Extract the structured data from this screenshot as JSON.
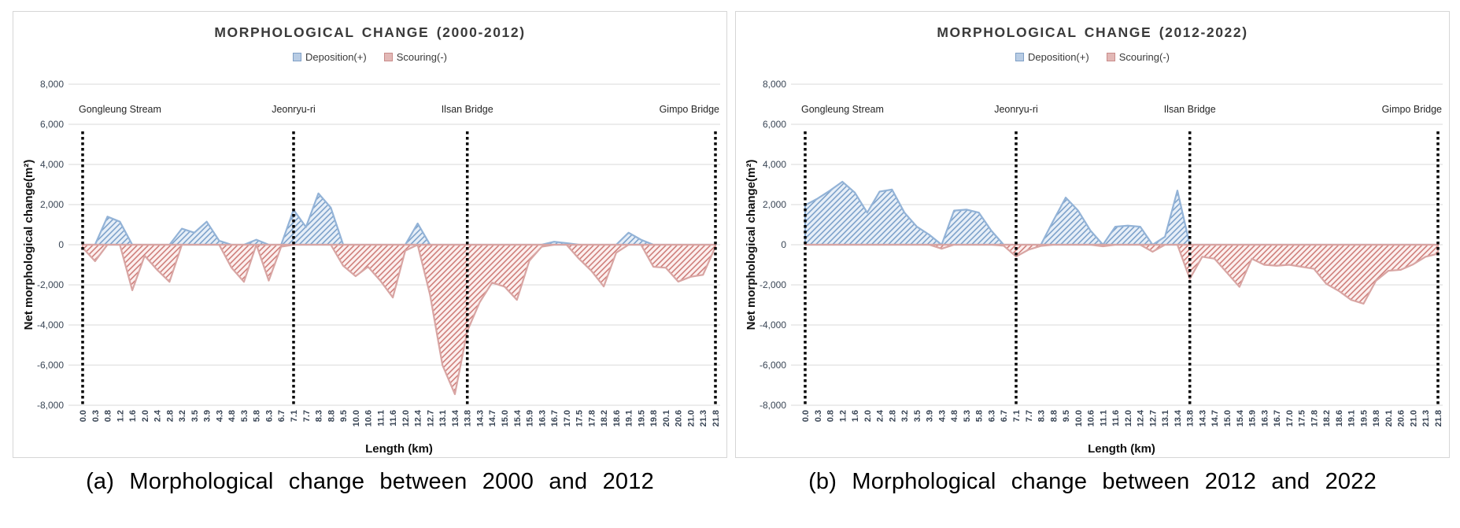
{
  "colors": {
    "deposition_fill": "#e7eff8",
    "deposition_hatch": "#6f97c4",
    "deposition_stroke": "#93b3d7",
    "deposition_swatch": "#b8cce4",
    "deposition_swatch_border": "#7f9fc6",
    "scouring_fill": "#fcf0ef",
    "scouring_hatch": "#c96f6b",
    "scouring_stroke": "#d8a5a3",
    "scouring_swatch": "#e2b8b6",
    "scouring_swatch_border": "#c98c8a",
    "grid": "#d9d9d9",
    "marker_line": "#000000",
    "axis_text": "#394555",
    "title_text": "#3a3a3a",
    "location_text": "#262626"
  },
  "chart_data": [
    {
      "type": "area",
      "title": "MORPHOLOGICAL CHANGE (2000-2012)",
      "caption": "(a) Morphological change between 2000 and 2012",
      "legend": [
        "Deposition(+)",
        "Scouring(-)"
      ],
      "xlabel": "Length (km)",
      "ylabel": "Net morphological change(m²)",
      "ylim": [
        -8000,
        8000
      ],
      "ytick_step": 2000,
      "grid": "on",
      "legend_position": "top",
      "series_note": "positive values rendered as Deposition(+), negative as Scouring(-)",
      "x": [
        "0.0",
        "0.3",
        "0.8",
        "1.2",
        "1.6",
        "2.0",
        "2.4",
        "2.8",
        "3.2",
        "3.5",
        "3.9",
        "4.3",
        "4.8",
        "5.3",
        "5.8",
        "6.3",
        "6.7",
        "7.1",
        "7.7",
        "8.3",
        "8.8",
        "9.5",
        "10.0",
        "10.6",
        "11.1",
        "11.6",
        "12.0",
        "12.4",
        "12.7",
        "13.1",
        "13.4",
        "13.8",
        "14.3",
        "14.7",
        "15.0",
        "15.4",
        "15.9",
        "16.3",
        "16.7",
        "17.0",
        "17.5",
        "17.8",
        "18.2",
        "18.6",
        "19.1",
        "19.5",
        "19.8",
        "20.1",
        "20.6",
        "21.0",
        "21.3",
        "21.8"
      ],
      "values": [
        -150,
        -820,
        1400,
        1150,
        -2270,
        -550,
        -1250,
        -1850,
        800,
        600,
        1150,
        200,
        -1150,
        -1850,
        250,
        -1790,
        -100,
        1740,
        880,
        2560,
        1850,
        -1050,
        -1570,
        -1100,
        -1800,
        -2630,
        -300,
        1060,
        -2500,
        -6000,
        -7450,
        -4300,
        -2870,
        -1890,
        -2090,
        -2750,
        -800,
        -100,
        150,
        80,
        -700,
        -1300,
        -2080,
        -400,
        600,
        250,
        -1100,
        -1150,
        -1840,
        -1600,
        -1500,
        -100
      ],
      "markers": [
        {
          "label": "Gongleung Stream",
          "x": "0.0",
          "align": "start"
        },
        {
          "label": "Jeonryu-ri",
          "x": "7.1",
          "align": "middle"
        },
        {
          "label": "Ilsan Bridge",
          "x": "13.8",
          "align": "middle"
        },
        {
          "label": "Gimpo Bridge",
          "x": "21.8",
          "align": "end"
        }
      ]
    },
    {
      "type": "area",
      "title": "MORPHOLOGICAL CHANGE (2012-2022)",
      "caption": "(b) Morphological change between 2012 and 2022",
      "legend": [
        "Deposition(+)",
        "Scouring(-)"
      ],
      "xlabel": "Length (km)",
      "ylabel": "Net morphological change(m²)",
      "ylim": [
        -8000,
        8000
      ],
      "ytick_step": 2000,
      "grid": "on",
      "legend_position": "top",
      "series_note": "positive values rendered as Deposition(+), negative as Scouring(-)",
      "x": [
        "0.0",
        "0.3",
        "0.8",
        "1.2",
        "1.6",
        "2.0",
        "2.4",
        "2.8",
        "3.2",
        "3.5",
        "3.9",
        "4.3",
        "4.8",
        "5.3",
        "5.8",
        "6.3",
        "6.7",
        "7.1",
        "7.7",
        "8.3",
        "8.8",
        "9.5",
        "10.0",
        "10.6",
        "11.1",
        "11.6",
        "12.0",
        "12.4",
        "12.7",
        "13.1",
        "13.4",
        "13.8",
        "14.3",
        "14.7",
        "15.0",
        "15.4",
        "15.9",
        "16.3",
        "16.7",
        "17.0",
        "17.5",
        "17.8",
        "18.2",
        "18.6",
        "19.1",
        "19.5",
        "19.8",
        "20.1",
        "20.6",
        "21.0",
        "21.3",
        "21.8"
      ],
      "values": [
        1970,
        2300,
        2700,
        3140,
        2600,
        1600,
        2650,
        2750,
        1600,
        900,
        500,
        -200,
        1700,
        1750,
        1600,
        700,
        -50,
        -590,
        -250,
        -60,
        1200,
        2350,
        1700,
        700,
        -80,
        900,
        950,
        900,
        -350,
        400,
        2700,
        -1700,
        -600,
        -700,
        -1400,
        -2100,
        -700,
        -1000,
        -1050,
        -1000,
        -1100,
        -1200,
        -1950,
        -2300,
        -2750,
        -2940,
        -1800,
        -1300,
        -1250,
        -980,
        -600,
        -450
      ],
      "markers": [
        {
          "label": "Gongleung Stream",
          "x": "0.0",
          "align": "start"
        },
        {
          "label": "Jeonryu-ri",
          "x": "7.1",
          "align": "middle"
        },
        {
          "label": "Ilsan Bridge",
          "x": "13.8",
          "align": "middle"
        },
        {
          "label": "Gimpo Bridge",
          "x": "21.8",
          "align": "end"
        }
      ]
    }
  ]
}
